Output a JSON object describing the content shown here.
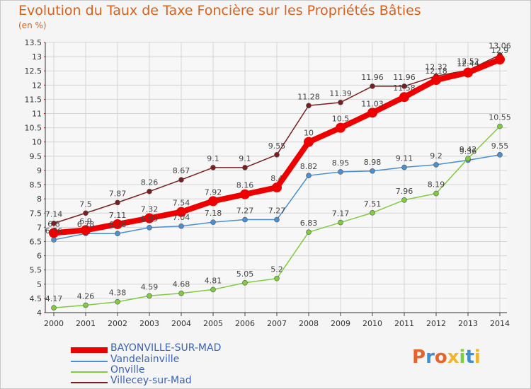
{
  "title": "Evolution du Taux de Taxe Foncière sur les Propriétés Bâties",
  "subtitle": "(en %)",
  "logo_text": "Proxiti",
  "colors": {
    "title": "#d9611c",
    "legend_text": "#3a63b5",
    "grid": "#d4d4d4",
    "axis": "#333333"
  },
  "chart_data": {
    "type": "line",
    "x": [
      "2000",
      "2001",
      "2002",
      "2003",
      "2004",
      "2005",
      "2006",
      "2007",
      "2008",
      "2009",
      "2010",
      "2011",
      "2012",
      "2013",
      "2014"
    ],
    "y_ticks": [
      "4",
      "4.5",
      "5",
      "5.5",
      "6",
      "6.5",
      "7",
      "7.5",
      "8",
      "8.5",
      "9",
      "9.5",
      "10",
      "10.5",
      "11",
      "11.5",
      "12",
      "12.5",
      "13",
      "13.5"
    ],
    "ylim": [
      4,
      13.5
    ],
    "grid": true,
    "legend_position": "bottom-left",
    "series": [
      {
        "name": "BAYONVILLE-SUR-MAD",
        "color": "#ee0000",
        "values": [
          6.8,
          6.9,
          7.11,
          7.32,
          7.54,
          7.92,
          8.16,
          8.4,
          10,
          10.5,
          11.03,
          11.58,
          12.18,
          12.44,
          12.9
        ],
        "labels": [
          "6.8",
          "6.9",
          "7.11",
          "7.32",
          "7.54",
          "7.92",
          "8.16",
          "8.4",
          "10",
          "10.5",
          "11.03",
          "11.58",
          "12.18",
          "12.44",
          "12.9"
        ]
      },
      {
        "name": "Vandelainville",
        "color": "#4a8fcf",
        "values": [
          6.56,
          6.78,
          6.78,
          6.99,
          7.04,
          7.18,
          7.27,
          7.27,
          8.82,
          8.95,
          8.98,
          9.11,
          9.2,
          9.36,
          9.55
        ],
        "labels": [
          "6.56",
          "6.78",
          "6.78",
          "6.99",
          "7.04",
          "7.18",
          "7.27",
          "7.27",
          "8.82",
          "8.95",
          "8.98",
          "9.11",
          "9.2",
          "9.36",
          "9.55"
        ]
      },
      {
        "name": "Onville",
        "color": "#7fcc3f",
        "values": [
          4.17,
          4.26,
          4.38,
          4.59,
          4.68,
          4.81,
          5.05,
          5.2,
          6.83,
          7.17,
          7.51,
          7.96,
          8.19,
          9.42,
          10.55
        ],
        "labels": [
          "4.17",
          "4.26",
          "4.38",
          "4.59",
          "4.68",
          "4.81",
          "5.05",
          "5.2",
          "6.83",
          "7.17",
          "7.51",
          "7.96",
          "8.19",
          "9.42",
          "10.55"
        ]
      },
      {
        "name": "Villecey-sur-Mad",
        "color": "#7a1e1e",
        "values": [
          7.14,
          7.5,
          7.87,
          8.26,
          8.67,
          9.1,
          9.1,
          9.55,
          11.28,
          11.39,
          11.96,
          11.96,
          12.32,
          12.52,
          13.06
        ],
        "labels": [
          "7.14",
          "7.5",
          "7.87",
          "8.26",
          "8.67",
          "9.1",
          "9.1",
          "9.55",
          "11.28",
          "11.39",
          "11.96",
          "11.96",
          "12.32",
          "12.52",
          "13.06"
        ]
      }
    ]
  }
}
